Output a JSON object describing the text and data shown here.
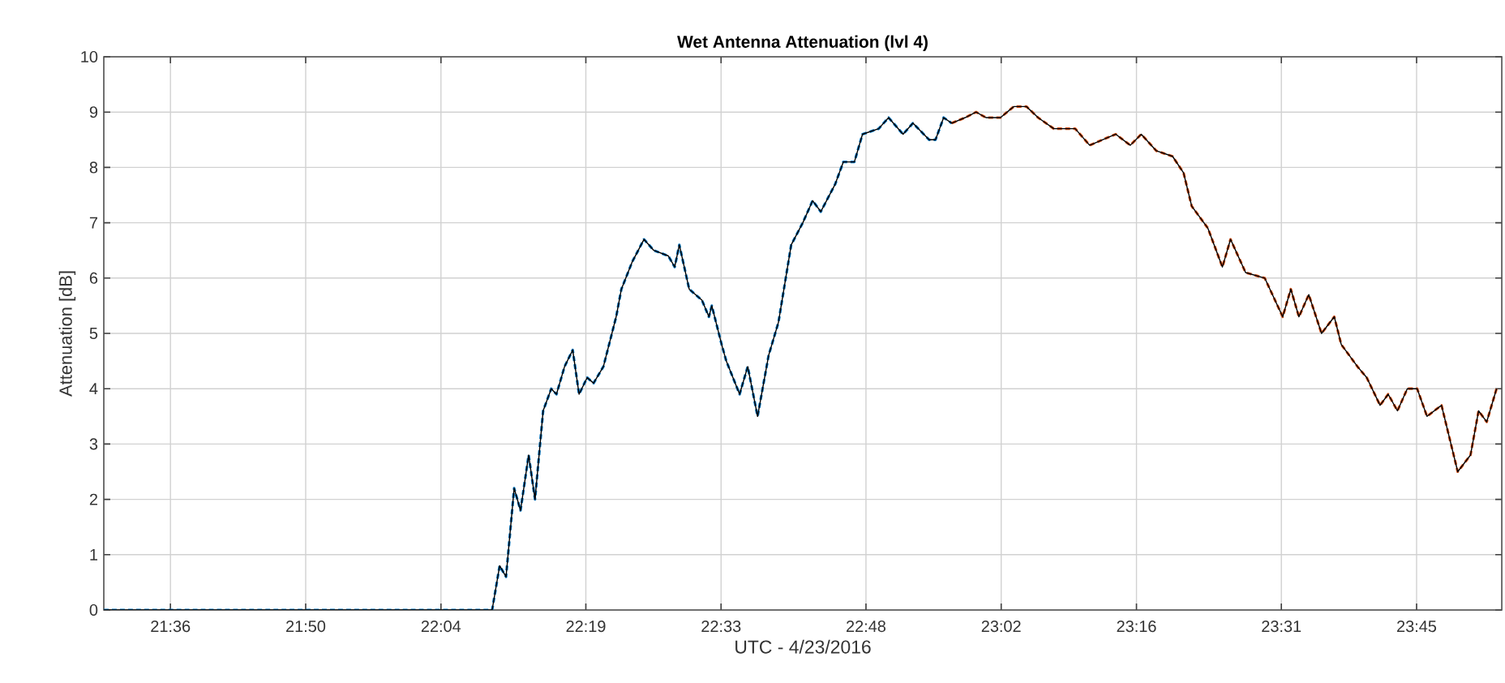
{
  "chart_data": {
    "type": "line",
    "title": "Wet Antenna Attenuation (lvl 4)",
    "xlabel": "UTC - 4/23/2016",
    "ylabel": "Attenuation [dB]",
    "xlim": [
      21.485,
      23.897
    ],
    "ylim": [
      0,
      10
    ],
    "xticks": [
      {
        "value": 21.6,
        "label": "21:36"
      },
      {
        "value": 21.8333,
        "label": "21:50"
      },
      {
        "value": 22.0667,
        "label": "22:04"
      },
      {
        "value": 22.3167,
        "label": "22:19"
      },
      {
        "value": 22.55,
        "label": "22:33"
      },
      {
        "value": 22.8,
        "label": "22:48"
      },
      {
        "value": 23.0333,
        "label": "23:02"
      },
      {
        "value": 23.2667,
        "label": "23:16"
      },
      {
        "value": 23.5167,
        "label": "23:31"
      },
      {
        "value": 23.75,
        "label": "23:45"
      }
    ],
    "yticks": [
      0,
      1,
      2,
      3,
      4,
      5,
      6,
      7,
      8,
      9,
      10
    ],
    "grid": true,
    "marker": "none",
    "series": [
      {
        "color": "#0072bd",
        "line_style": "dashed",
        "x": [
          21.485,
          22.155,
          22.168,
          22.179,
          22.193,
          22.204,
          22.218,
          22.229,
          22.243,
          22.257,
          22.266,
          22.28,
          22.294,
          22.305,
          22.319,
          22.33,
          22.347,
          22.369,
          22.378,
          22.397,
          22.417,
          22.434,
          22.459,
          22.47,
          22.478,
          22.495,
          22.517,
          22.529,
          22.534,
          22.551,
          22.559,
          22.582,
          22.596,
          22.613,
          22.632,
          22.649,
          22.671,
          22.691,
          22.708,
          22.722,
          22.747,
          22.761,
          22.78,
          22.794,
          22.822,
          22.839,
          22.864,
          22.881,
          22.909,
          22.92,
          22.934,
          22.948
        ],
        "values": [
          0,
          0,
          0.8,
          0.6,
          2.2,
          1.8,
          2.8,
          2.0,
          3.6,
          4.0,
          3.9,
          4.4,
          4.7,
          3.9,
          4.2,
          4.1,
          4.4,
          5.3,
          5.8,
          6.3,
          6.7,
          6.5,
          6.4,
          6.2,
          6.6,
          5.8,
          5.6,
          5.3,
          5.5,
          4.8,
          4.5,
          3.9,
          4.4,
          3.5,
          4.6,
          5.2,
          6.6,
          7.0,
          7.4,
          7.2,
          7.7,
          8.1,
          8.1,
          8.6,
          8.7,
          8.9,
          8.6,
          8.8,
          8.5,
          8.5,
          8.9,
          8.8
        ]
      },
      {
        "color": "#d95319",
        "line_style": "dashed",
        "x": [
          22.948,
          22.971,
          22.99,
          23.007,
          23.032,
          23.055,
          23.077,
          23.097,
          23.124,
          23.161,
          23.186,
          23.208,
          23.231,
          23.256,
          23.275,
          23.301,
          23.329,
          23.348,
          23.362,
          23.39,
          23.415,
          23.429,
          23.455,
          23.488,
          23.519,
          23.533,
          23.547,
          23.564,
          23.586,
          23.608,
          23.62,
          23.648,
          23.664,
          23.687,
          23.701,
          23.717,
          23.734,
          23.751,
          23.768,
          23.793,
          23.821,
          23.843,
          23.857,
          23.871,
          23.888
        ],
        "values": [
          8.8,
          8.9,
          9.0,
          8.9,
          8.9,
          9.1,
          9.1,
          8.9,
          8.7,
          8.7,
          8.4,
          8.5,
          8.6,
          8.4,
          8.6,
          8.3,
          8.2,
          7.9,
          7.3,
          6.9,
          6.2,
          6.7,
          6.1,
          6.0,
          5.3,
          5.8,
          5.3,
          5.7,
          5.0,
          5.3,
          4.8,
          4.4,
          4.2,
          3.7,
          3.9,
          3.6,
          4.0,
          4.0,
          3.5,
          3.7,
          2.5,
          2.8,
          3.6,
          3.4,
          4.0
        ]
      },
      {
        "color": "#000000",
        "line_style": "solid",
        "x": [
          21.485,
          22.155,
          22.168,
          22.179,
          22.193,
          22.204,
          22.218,
          22.229,
          22.243,
          22.257,
          22.266,
          22.28,
          22.294,
          22.305,
          22.319,
          22.33,
          22.347,
          22.369,
          22.378,
          22.397,
          22.417,
          22.434,
          22.459,
          22.47,
          22.478,
          22.495,
          22.517,
          22.529,
          22.534,
          22.551,
          22.559,
          22.582,
          22.596,
          22.613,
          22.632,
          22.649,
          22.671,
          22.691,
          22.708,
          22.722,
          22.747,
          22.761,
          22.78,
          22.794,
          22.822,
          22.839,
          22.864,
          22.881,
          22.909,
          22.92,
          22.934,
          22.948,
          22.971,
          22.99,
          23.007,
          23.032,
          23.055,
          23.077,
          23.097,
          23.124,
          23.161,
          23.186,
          23.208,
          23.231,
          23.256,
          23.275,
          23.301,
          23.329,
          23.348,
          23.362,
          23.39,
          23.415,
          23.429,
          23.455,
          23.488,
          23.519,
          23.533,
          23.547,
          23.564,
          23.586,
          23.608,
          23.62,
          23.648,
          23.664,
          23.687,
          23.701,
          23.717,
          23.734,
          23.751,
          23.768,
          23.793,
          23.821,
          23.843,
          23.857,
          23.871,
          23.888
        ],
        "values": [
          0,
          0,
          0.8,
          0.6,
          2.2,
          1.8,
          2.8,
          2.0,
          3.6,
          4.0,
          3.9,
          4.4,
          4.7,
          3.9,
          4.2,
          4.1,
          4.4,
          5.3,
          5.8,
          6.3,
          6.7,
          6.5,
          6.4,
          6.2,
          6.6,
          5.8,
          5.6,
          5.3,
          5.5,
          4.8,
          4.5,
          3.9,
          4.4,
          3.5,
          4.6,
          5.2,
          6.6,
          7.0,
          7.4,
          7.2,
          7.7,
          8.1,
          8.1,
          8.6,
          8.7,
          8.9,
          8.6,
          8.8,
          8.5,
          8.5,
          8.9,
          8.8,
          8.9,
          9.0,
          8.9,
          8.9,
          9.1,
          9.1,
          8.9,
          8.7,
          8.7,
          8.4,
          8.5,
          8.6,
          8.4,
          8.6,
          8.3,
          8.2,
          7.9,
          7.3,
          6.9,
          6.2,
          6.7,
          6.1,
          6.0,
          5.3,
          5.8,
          5.3,
          5.7,
          5.0,
          5.3,
          4.8,
          4.4,
          4.2,
          3.7,
          3.9,
          3.6,
          4.0,
          4.0,
          3.5,
          3.7,
          2.5,
          2.8,
          3.6,
          3.4,
          4.0
        ]
      }
    ]
  }
}
